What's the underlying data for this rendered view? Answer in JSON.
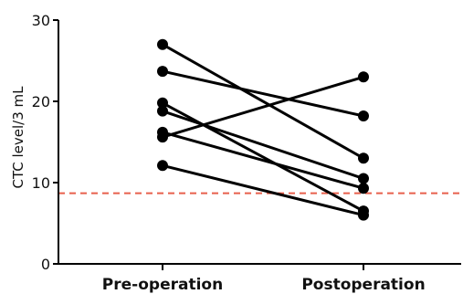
{
  "chart_data": {
    "type": "line",
    "categories": [
      "Pre-operation",
      "Postoperation"
    ],
    "ylabel": "CTC level/3 mL",
    "ylim": [
      0,
      30
    ],
    "yticks": [
      0,
      10,
      20,
      30
    ],
    "reference_line": {
      "value": 8.7,
      "color": "#e8604c",
      "style": "dashed"
    },
    "pairs": [
      [
        27,
        13
      ],
      [
        23.7,
        18.2
      ],
      [
        19.8,
        6.5
      ],
      [
        18.8,
        10.5
      ],
      [
        16.2,
        9.3
      ],
      [
        15.6,
        23
      ],
      [
        12.1,
        6
      ]
    ]
  },
  "colors": {
    "series": "#000000",
    "axis": "#000000",
    "reference": "#e8604c"
  }
}
